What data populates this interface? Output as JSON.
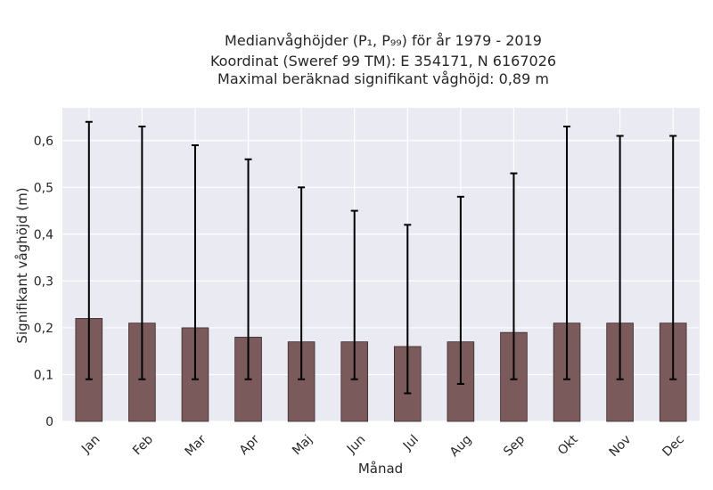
{
  "chart_data": {
    "type": "bar",
    "title_lines": [
      "Medianvåghöjder (P₁, P₉₉) för år 1979 - 2019",
      "Koordinat (Sweref 99 TM): E 354171, N 6167026",
      "Maximal beräknad signifikant våghöjd: 0,89 m"
    ],
    "xlabel": "Månad",
    "ylabel": "Signifikant våghöjd (m)",
    "categories": [
      "Jan",
      "Feb",
      "Mar",
      "Apr",
      "Maj",
      "Jun",
      "Jul",
      "Aug",
      "Sep",
      "Okt",
      "Nov",
      "Dec"
    ],
    "values": [
      0.22,
      0.21,
      0.2,
      0.18,
      0.17,
      0.17,
      0.16,
      0.17,
      0.19,
      0.21,
      0.21,
      0.21
    ],
    "p1": [
      0.09,
      0.09,
      0.09,
      0.09,
      0.09,
      0.09,
      0.06,
      0.08,
      0.09,
      0.09,
      0.09,
      0.09
    ],
    "p99": [
      0.64,
      0.63,
      0.59,
      0.56,
      0.5,
      0.45,
      0.42,
      0.48,
      0.53,
      0.63,
      0.61,
      0.61
    ],
    "ylim": [
      0,
      0.67
    ],
    "yticks": [
      0,
      0.1,
      0.2,
      0.3,
      0.4,
      0.5,
      0.6
    ],
    "ytick_labels": [
      "0",
      "0,1",
      "0,2",
      "0,3",
      "0,4",
      "0,5",
      "0,6"
    ],
    "grid": true,
    "colors": {
      "bar": "#7b5a5c",
      "bar_edge": "#3a2a2b",
      "error": "#000000",
      "background": "#eaeaf2",
      "grid": "#ffffff"
    }
  }
}
